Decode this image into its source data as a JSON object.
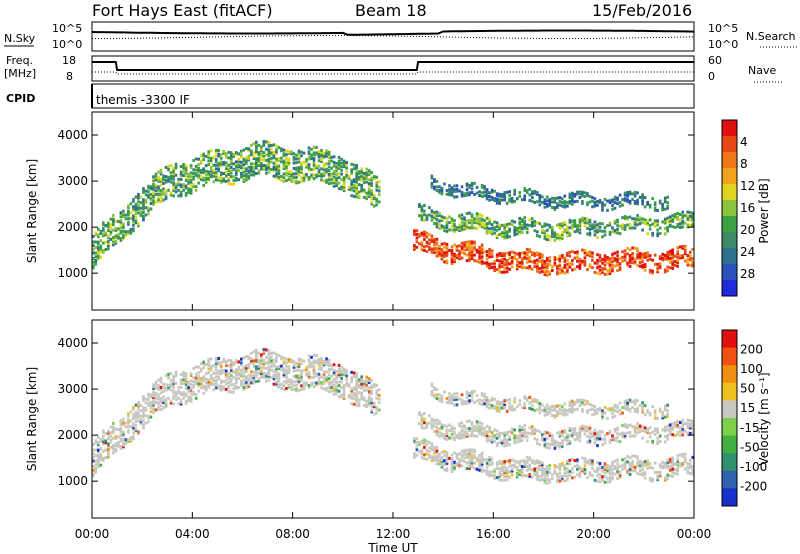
{
  "header": {
    "station": "Fort Hays East (fitACF)",
    "beam": "Beam 18",
    "date": "15/Feb/2016"
  },
  "top_panels": {
    "nsky_label": "N.Sky",
    "nsearch_label": "N.Search",
    "nsky_ticks": [
      "10^5",
      "10^0"
    ],
    "nsearch_ticks": [
      "10^5",
      "10^0"
    ],
    "freq_label_1": "Freq.",
    "freq_label_2": "[MHz]",
    "freq_ticks": [
      "18",
      "8"
    ],
    "nave_label": "Nave",
    "nave_ticks": [
      "60",
      "0"
    ],
    "cpid_label": "CPID",
    "cpid_text": "themis -3300 IF"
  },
  "chart_data": [
    {
      "type": "heatmap",
      "name_printed": "Power [dB]",
      "ylabel": "Slant Range [km]",
      "ylim": [
        200,
        4500
      ],
      "yticks": [
        1000,
        2000,
        3000,
        4000
      ],
      "colorbar": {
        "label": "Power [dB]",
        "ticks": [
          "4",
          "8",
          "12",
          "16",
          "20",
          "24",
          "28"
        ],
        "colors": [
          "#1f2bd8",
          "#2c4fb8",
          "#2f6f8f",
          "#3a8a66",
          "#3aa043",
          "#8cc43c",
          "#e0d41f",
          "#f0a21c",
          "#f07818",
          "#e84818",
          "#e01010"
        ]
      },
      "echo_regions": [
        {
          "t_start": 0.0,
          "t_end": 11.4,
          "range_center_km": [
            1500,
            2400,
            3100,
            3300,
            3500,
            3400,
            3300,
            2700
          ],
          "width_km": 700,
          "dominant": "green"
        },
        {
          "t_start": 12.8,
          "t_end": 24.0,
          "range_center_km": [
            1700,
            1500,
            1350,
            1250,
            1250,
            1300,
            1300,
            1350
          ],
          "width_km": 400,
          "dominant": "red-orange"
        },
        {
          "t_start": 13.0,
          "t_end": 24.0,
          "range_center_km": [
            2300,
            2150,
            2050,
            2000,
            2000,
            2050,
            2100,
            2150
          ],
          "width_km": 350,
          "dominant": "green"
        },
        {
          "t_start": 13.5,
          "t_end": 23.0,
          "range_center_km": [
            3000,
            2800,
            2750,
            2650,
            2600,
            2600,
            2600,
            2600
          ],
          "width_km": 250,
          "dominant": "blue-green"
        }
      ]
    },
    {
      "type": "heatmap",
      "name_printed": "Velocity [m s^-1]",
      "ylabel": "Slant Range [km]",
      "xlabel": "Time UT",
      "ylim": [
        200,
        4500
      ],
      "yticks": [
        1000,
        2000,
        3000,
        4000
      ],
      "xticks": [
        "00:00",
        "04:00",
        "08:00",
        "12:00",
        "16:00",
        "20:00",
        "00:00"
      ],
      "xlim_hours": [
        0,
        24
      ],
      "colorbar": {
        "label": "Velocity [m s⁻¹]",
        "ticks": [
          "200",
          "100",
          "50",
          "15",
          "-15",
          "-50",
          "-100",
          "-200"
        ],
        "colors": [
          "#1630c8",
          "#3060b0",
          "#309070",
          "#40b040",
          "#7cd04a",
          "#c8c8c0",
          "#f0c020",
          "#f09010",
          "#f05010",
          "#e01010"
        ]
      },
      "ground_scatter_color": "#c8c8c0"
    }
  ]
}
